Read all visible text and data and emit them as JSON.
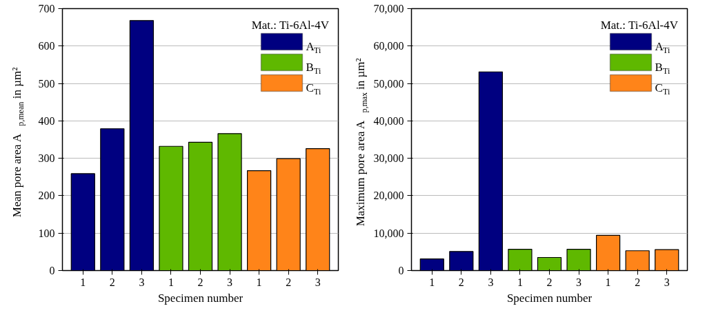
{
  "chart_data": [
    {
      "type": "bar",
      "xlabel": "Specimen number",
      "ylabel": "Mean pore area A$_{p,mean}$ in µm²",
      "legend_title": "Mat.: Ti-6Al-4V",
      "categories": [
        "1",
        "2",
        "3",
        "1",
        "2",
        "3",
        "1",
        "2",
        "3"
      ],
      "series": [
        {
          "name": "A$_{Ti}$",
          "color": "#000080",
          "values": [
            259,
            379,
            668,
            null,
            null,
            null,
            null,
            null,
            null
          ]
        },
        {
          "name": "B$_{Ti}$",
          "color": "#5fb800",
          "values": [
            null,
            null,
            null,
            332,
            343,
            366,
            null,
            null,
            null
          ]
        },
        {
          "name": "C$_{Ti}$",
          "color": "#ff8419",
          "values": [
            null,
            null,
            null,
            null,
            null,
            null,
            267,
            299,
            326
          ]
        }
      ],
      "ylim": [
        0,
        700
      ],
      "yticks": [
        0,
        100,
        200,
        300,
        400,
        500,
        600,
        700
      ],
      "grid": "y",
      "legend": "top right"
    },
    {
      "type": "bar",
      "xlabel": "Specimen number",
      "ylabel": "Maximum pore area A$_{p,max}$ in µm²",
      "legend_title": "Mat.: Ti-6Al-4V",
      "categories": [
        "1",
        "2",
        "3",
        "1",
        "2",
        "3",
        "1",
        "2",
        "3"
      ],
      "series": [
        {
          "name": "A$_{Ti}$",
          "color": "#000080",
          "values": [
            3100,
            5100,
            53100,
            null,
            null,
            null,
            null,
            null,
            null
          ]
        },
        {
          "name": "B$_{Ti}$",
          "color": "#5fb800",
          "values": [
            null,
            null,
            null,
            5700,
            3500,
            5700,
            null,
            null,
            null
          ]
        },
        {
          "name": "C$_{Ti}$",
          "color": "#ff8419",
          "values": [
            null,
            null,
            null,
            null,
            null,
            null,
            9400,
            5300,
            5600
          ]
        }
      ],
      "ylim": [
        0,
        70000
      ],
      "yticks": [
        0,
        {
          "value": 10000,
          "label": "10,000"
        },
        {
          "value": 20000,
          "label": "20,000"
        },
        {
          "value": 30000,
          "label": "30,000"
        },
        {
          "value": 40000,
          "label": "40,000"
        },
        {
          "value": 50000,
          "label": "50,000"
        },
        {
          "value": 60000,
          "label": "60,000"
        },
        {
          "value": 70000,
          "label": "70,000"
        }
      ],
      "grid": "y",
      "legend": "top right"
    }
  ]
}
